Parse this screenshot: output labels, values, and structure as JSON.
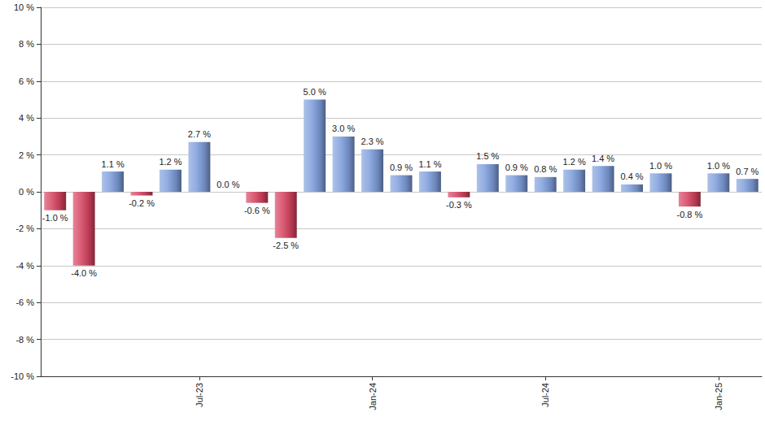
{
  "chart_data": {
    "type": "bar",
    "categories": [
      null,
      null,
      null,
      null,
      null,
      "Jul-23",
      null,
      null,
      null,
      null,
      null,
      "Jan-24",
      null,
      null,
      null,
      null,
      null,
      "Jul-24",
      null,
      null,
      null,
      null,
      null,
      "Jan-25",
      null
    ],
    "values": [
      -1.0,
      -4.0,
      1.1,
      -0.2,
      1.2,
      2.7,
      0.0,
      -0.6,
      -2.5,
      5.0,
      3.0,
      2.3,
      0.9,
      1.1,
      -0.3,
      1.5,
      0.9,
      0.8,
      1.2,
      1.4,
      0.4,
      1.0,
      -0.8,
      1.0,
      0.7
    ],
    "value_labels": [
      "-1.0 %",
      "-4.0 %",
      "1.1 %",
      "-0.2 %",
      "1.2 %",
      "2.7 %",
      "0.0 %",
      "-0.6 %",
      "-2.5 %",
      "5.0 %",
      "3.0 %",
      "2.3 %",
      "0.9 %",
      "1.1 %",
      "-0.3 %",
      "1.5 %",
      "0.9 %",
      "0.8 %",
      "1.2 %",
      "1.4 %",
      "0.4 %",
      "1.0 %",
      "-0.8 %",
      "1.0 %",
      "0.7 %"
    ],
    "colors": [
      "#d6425f",
      "#d6425f",
      "#7f9fdc",
      "#d6425f",
      "#7f9fdc",
      "#7f9fdc",
      "#7f9fdc",
      "#d6425f",
      "#d6425f",
      "#7f9fdc",
      "#7f9fdc",
      "#7f9fdc",
      "#7f9fdc",
      "#7f9fdc",
      "#d6425f",
      "#7f9fdc",
      "#7f9fdc",
      "#7f9fdc",
      "#7f9fdc",
      "#7f9fdc",
      "#7f9fdc",
      "#7f9fdc",
      "#d6425f",
      "#7f9fdc",
      "#7f9fdc"
    ],
    "ylim": [
      -10,
      10
    ],
    "yticks": [
      {
        "value": -10,
        "label": "-10 %"
      },
      {
        "value": -8,
        "label": "-8 %"
      },
      {
        "value": -6,
        "label": "-6 %"
      },
      {
        "value": -4,
        "label": "-4 %"
      },
      {
        "value": -2,
        "label": "-2 %"
      },
      {
        "value": 0,
        "label": "0 %"
      },
      {
        "value": 2,
        "label": "2 %"
      },
      {
        "value": 4,
        "label": "4 %"
      },
      {
        "value": 6,
        "label": "6 %"
      },
      {
        "value": 8,
        "label": "8 %"
      },
      {
        "value": 10,
        "label": "10 %"
      }
    ],
    "grid": true,
    "data_labels": true
  }
}
